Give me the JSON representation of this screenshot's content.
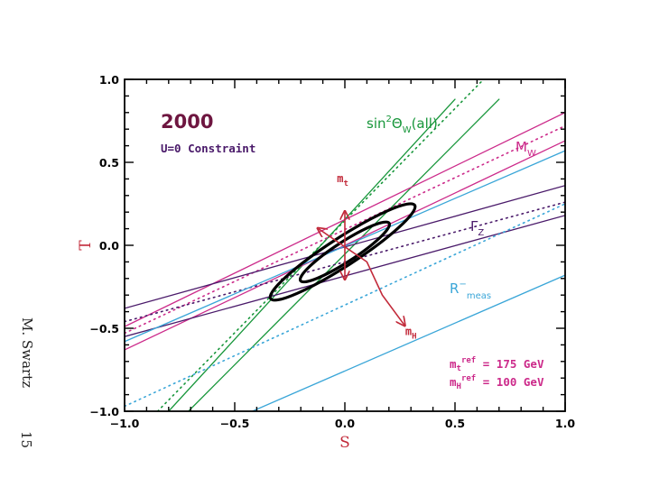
{
  "side_label": "M. Swartz",
  "page_number": "15",
  "chart_data": {
    "type": "line",
    "xlabel": "S",
    "ylabel": "T",
    "xlim": [
      -1.0,
      1.0
    ],
    "ylim": [
      -1.0,
      1.0
    ],
    "xticks": [
      "-1.0",
      "-0.5",
      "0.0",
      "0.5",
      "1.0"
    ],
    "yticks": [
      "-1.0",
      "-0.5",
      "0.0",
      "0.5",
      "1.0"
    ],
    "year": "2000",
    "constraint": "U=0 Constraint",
    "colors": {
      "year": "#6e1640",
      "constraint": "#4a1a6a",
      "sin2w": "#17963a",
      "mw": "#cc2a8a",
      "gz": "#4a1a6a",
      "rmeas": "#3aa6d8",
      "arrows": "#c22a3a",
      "ellipse": "#000000",
      "axis_title": "#c22a3a"
    },
    "bands": [
      {
        "key": "sin2w",
        "label_main": "sin",
        "label_sup": "2",
        "label_theta": "Θ",
        "label_sub": "W",
        "label_tail": "(all)",
        "center": [
          [
            -0.85,
            -1.0
          ],
          [
            0.63,
            1.0
          ]
        ],
        "lower": [
          [
            -0.71,
            -1.0
          ],
          [
            0.7,
            0.88
          ]
        ],
        "upper": [
          [
            -0.8,
            -1.0
          ],
          [
            0.5,
            0.88
          ]
        ]
      },
      {
        "key": "mw",
        "label_main": "M",
        "label_sub": "W",
        "center": [
          [
            -1.0,
            -0.53
          ],
          [
            1.0,
            0.72
          ]
        ],
        "lower": [
          [
            -1.0,
            -0.63
          ],
          [
            1.0,
            0.63
          ]
        ],
        "upper": [
          [
            -1.0,
            -0.49
          ],
          [
            1.0,
            0.8
          ]
        ]
      },
      {
        "key": "gz",
        "label_main": "Γ",
        "label_sub": "Z",
        "center": [
          [
            -1.0,
            -0.46
          ],
          [
            1.0,
            0.26
          ]
        ],
        "lower": [
          [
            -1.0,
            -0.55
          ],
          [
            1.0,
            0.18
          ]
        ],
        "upper": [
          [
            -1.0,
            -0.38
          ],
          [
            1.0,
            0.36
          ]
        ]
      },
      {
        "key": "rmeas",
        "label_main": "R",
        "label_sup": "−",
        "label_sub": "meas",
        "center": [
          [
            -1.0,
            -0.97
          ],
          [
            1.0,
            0.25
          ]
        ],
        "lower": [
          [
            -0.42,
            -1.0
          ],
          [
            1.0,
            -0.18
          ]
        ],
        "upper": [
          [
            -1.0,
            -0.58
          ],
          [
            1.0,
            0.57
          ]
        ]
      }
    ],
    "ellipses": [
      {
        "cx": 0.0,
        "cy": -0.04,
        "a": 0.24,
        "b": 0.06,
        "angle_deg": 33
      },
      {
        "cx": -0.01,
        "cy": -0.04,
        "a": 0.39,
        "b": 0.085,
        "angle_deg": 33
      }
    ],
    "arrows": [
      {
        "label": "m",
        "sub": "t",
        "path": [
          [
            0.0,
            0.2
          ],
          [
            0.0,
            0.0
          ],
          [
            0.0,
            -0.2
          ]
        ],
        "label_at": [
          -0.01,
          0.38
        ]
      },
      {
        "label": "m",
        "sub": "H",
        "path": [
          [
            -0.12,
            0.1
          ],
          [
            0.1,
            -0.1
          ],
          [
            0.17,
            -0.3
          ],
          [
            0.27,
            -0.48
          ]
        ],
        "label_at": [
          0.3,
          -0.54
        ]
      }
    ],
    "references": [
      {
        "sym": "m",
        "sub": "t",
        "sup": "ref",
        "value": " = 175 GeV"
      },
      {
        "sym": "m",
        "sub": "H",
        "sup": "ref",
        "value": " = 100 GeV"
      }
    ]
  }
}
